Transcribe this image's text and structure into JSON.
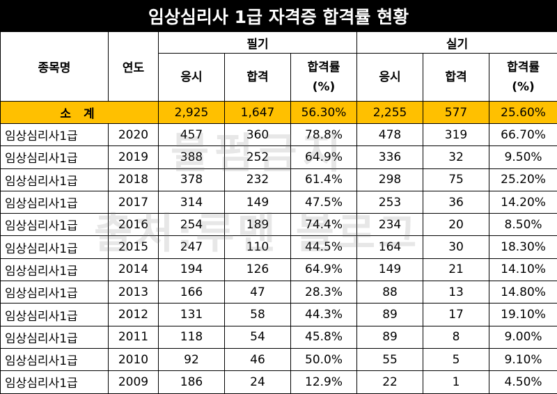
{
  "title": "임상심리사 1급 자격증 합격률 현황",
  "headers": {
    "item": "종목명",
    "year": "연도",
    "written": "필기",
    "practical": "실기",
    "applicants": "응시",
    "passed": "합격",
    "rate_line1": "합격률",
    "rate_line2": "(%)"
  },
  "subtotal": {
    "label": "소 계",
    "written_applicants": "2,925",
    "written_passed": "1,647",
    "written_rate": "56.30%",
    "practical_applicants": "2,255",
    "practical_passed": "577",
    "practical_rate": "25.60%"
  },
  "rows": [
    {
      "name": "임상심리사1급",
      "year": "2020",
      "w_app": "457",
      "w_pass": "360",
      "w_rate": "78.8%",
      "p_app": "478",
      "p_pass": "319",
      "p_rate": "66.70%"
    },
    {
      "name": "임상심리사1급",
      "year": "2019",
      "w_app": "388",
      "w_pass": "252",
      "w_rate": "64.9%",
      "p_app": "336",
      "p_pass": "32",
      "p_rate": "9.50%"
    },
    {
      "name": "임상심리사1급",
      "year": "2018",
      "w_app": "378",
      "w_pass": "232",
      "w_rate": "61.4%",
      "p_app": "298",
      "p_pass": "75",
      "p_rate": "25.20%"
    },
    {
      "name": "임상심리사1급",
      "year": "2017",
      "w_app": "314",
      "w_pass": "149",
      "w_rate": "47.5%",
      "p_app": "253",
      "p_pass": "36",
      "p_rate": "14.20%"
    },
    {
      "name": "임상심리사1급",
      "year": "2016",
      "w_app": "254",
      "w_pass": "189",
      "w_rate": "74.4%",
      "p_app": "234",
      "p_pass": "20",
      "p_rate": "8.50%"
    },
    {
      "name": "임상심리사1급",
      "year": "2015",
      "w_app": "247",
      "w_pass": "110",
      "w_rate": "44.5%",
      "p_app": "164",
      "p_pass": "30",
      "p_rate": "18.30%"
    },
    {
      "name": "임상심리사1급",
      "year": "2014",
      "w_app": "194",
      "w_pass": "126",
      "w_rate": "64.9%",
      "p_app": "149",
      "p_pass": "21",
      "p_rate": "14.10%"
    },
    {
      "name": "임상심리사1급",
      "year": "2013",
      "w_app": "166",
      "w_pass": "47",
      "w_rate": "28.3%",
      "p_app": "88",
      "p_pass": "13",
      "p_rate": "14.80%"
    },
    {
      "name": "임상심리사1급",
      "year": "2012",
      "w_app": "131",
      "w_pass": "58",
      "w_rate": "44.3%",
      "p_app": "89",
      "p_pass": "17",
      "p_rate": "19.10%"
    },
    {
      "name": "임상심리사1급",
      "year": "2011",
      "w_app": "118",
      "w_pass": "54",
      "w_rate": "45.8%",
      "p_app": "89",
      "p_pass": "8",
      "p_rate": "9.00%"
    },
    {
      "name": "임상심리사1급",
      "year": "2010",
      "w_app": "92",
      "w_pass": "46",
      "w_rate": "50.0%",
      "p_app": "55",
      "p_pass": "5",
      "p_rate": "9.10%"
    },
    {
      "name": "임상심리사1급",
      "year": "2009",
      "w_app": "186",
      "w_pass": "24",
      "w_rate": "12.9%",
      "p_app": "22",
      "p_pass": "1",
      "p_rate": "4.50%"
    }
  ],
  "watermarks": [
    "불펌금지",
    "출처:루멘 블로그"
  ]
}
